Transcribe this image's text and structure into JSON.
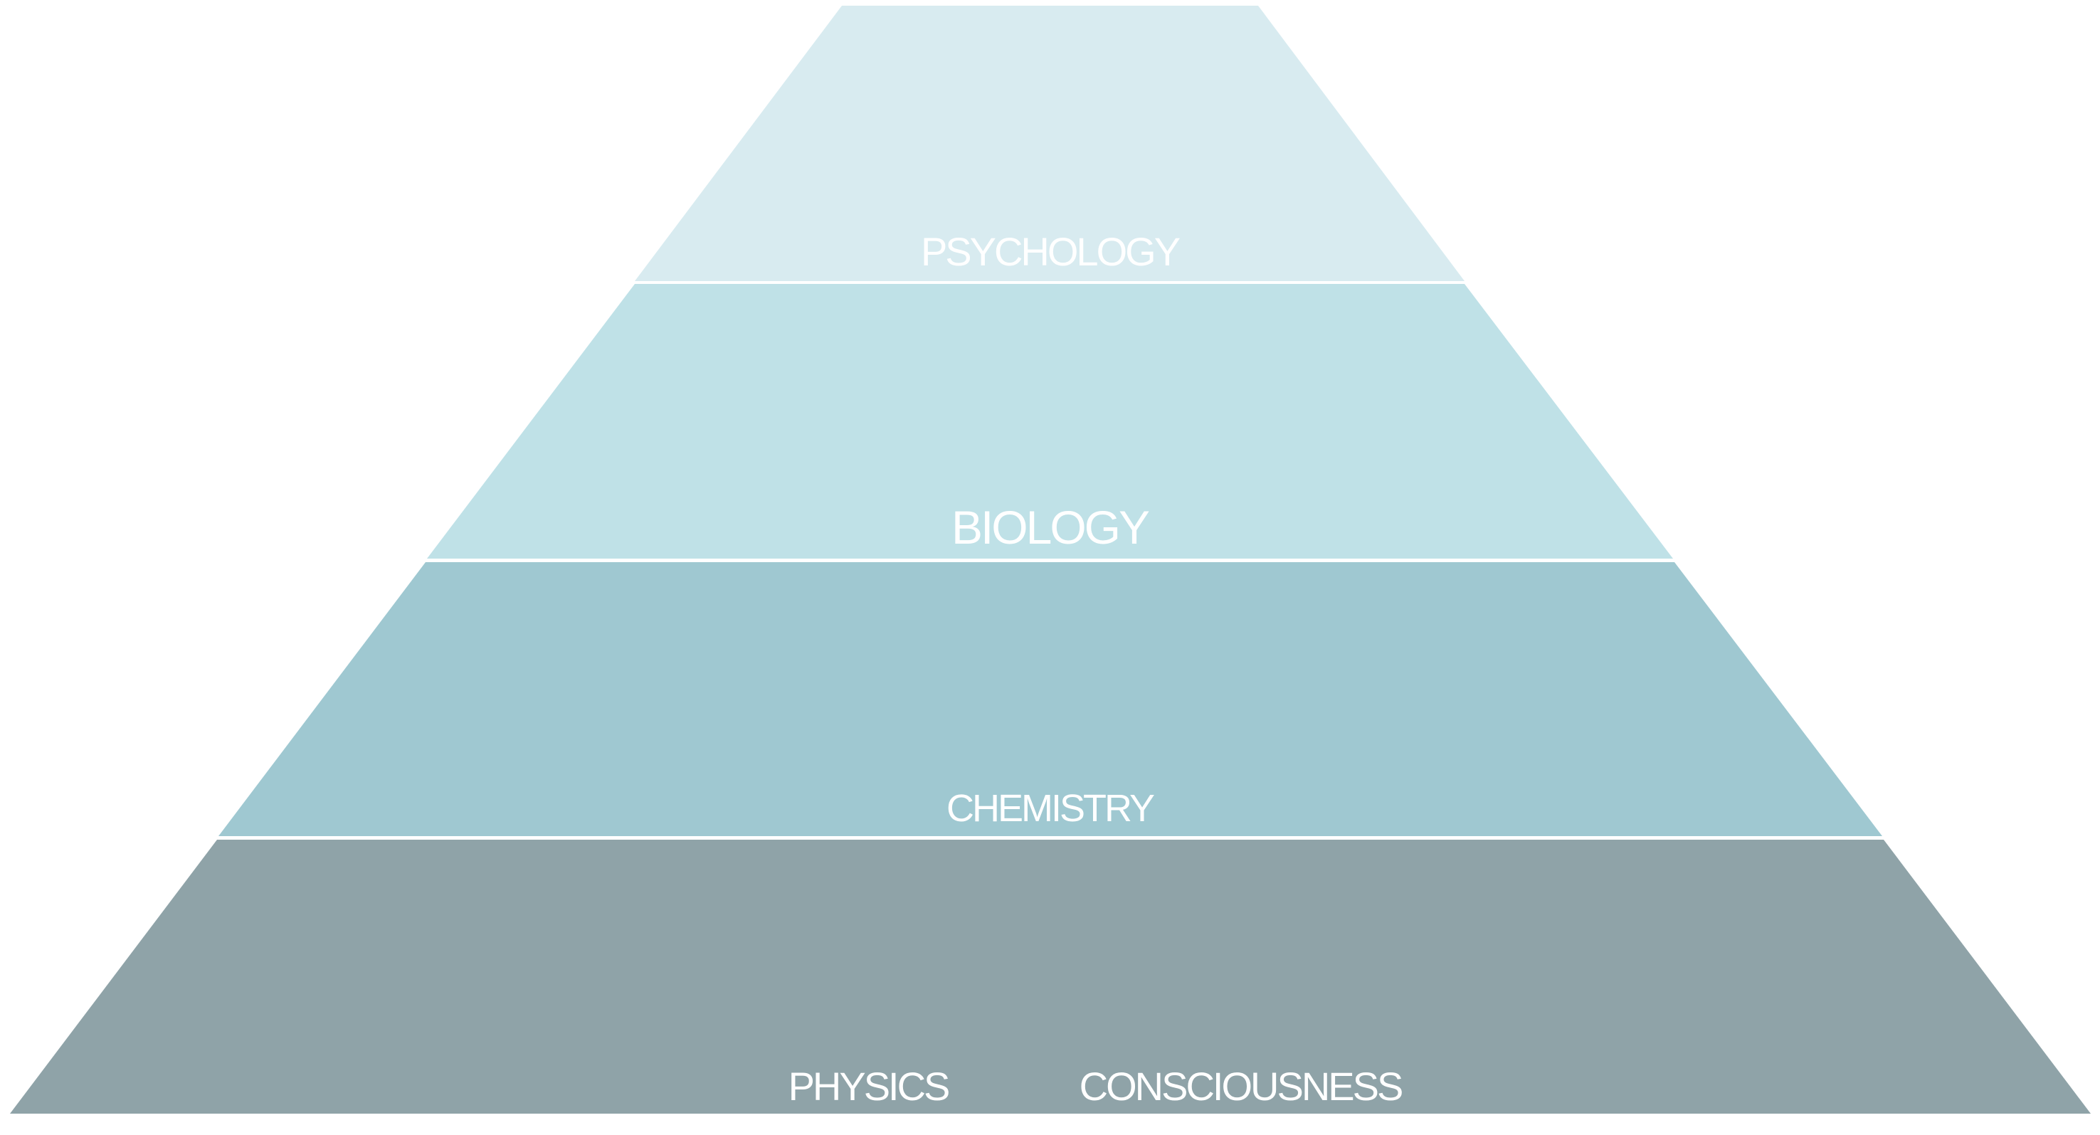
{
  "diagram": {
    "type": "layered-pyramid",
    "tiers": [
      {
        "name": "psychology",
        "label": "PSYCHOLOGY",
        "color": "#d8ebf0"
      },
      {
        "name": "biology",
        "label": "BIOLOGY",
        "color": "#bfe1e7"
      },
      {
        "name": "chemistry",
        "label": "CHEMISTRY",
        "color": "#9fc8d1"
      },
      {
        "name": "physics",
        "label": "PHYSICS",
        "secondary_label": "CONSCIOUSNESS",
        "color": "#8fa3a8"
      }
    ],
    "label_color": "#ffffff"
  }
}
